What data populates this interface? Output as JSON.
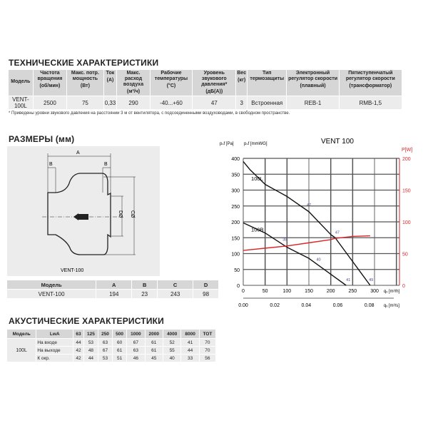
{
  "tech": {
    "title": "ТЕХНИЧЕСКИЕ ХАРАКТЕРИСТИКИ",
    "headers": [
      [
        "Модель",
        ""
      ],
      [
        "Частота вращения",
        "(об/мин)"
      ],
      [
        "Макс. потр. мощность",
        "(Вт)"
      ],
      [
        "Ток",
        "(А)"
      ],
      [
        "Макс. расход воздуха",
        "(м³/ч)"
      ],
      [
        "Рабочие температуры",
        "(°C)"
      ],
      [
        "Уровень звукового давления*",
        "(дБ(А))"
      ],
      [
        "Вес",
        "(кг)"
      ],
      [
        "Тип термозащиты",
        ""
      ],
      [
        "Электронный регулятор скорости",
        "(плавный)"
      ],
      [
        "Пятиступенчатый регулятор скорости",
        "(трансформатор)"
      ]
    ],
    "row": [
      "VENT-100L",
      "2500",
      "75",
      "0,33",
      "290",
      "-40...+60",
      "47",
      "3",
      "Встроенная",
      "REB-1",
      "RMB-1,5"
    ],
    "footnote": "* Приведены уровни звукового давления на расстоянии 3 м от вентилятора, с подсоединенными воздуховодами, в свободном пространстве."
  },
  "dims": {
    "title": "РАЗМЕРЫ (мм)",
    "drawing_caption": "VENT-100",
    "labels": {
      "a": "A",
      "b": "B",
      "c": "CØ",
      "d": "DØ"
    },
    "headers": [
      "Модель",
      "A",
      "B",
      "C",
      "D"
    ],
    "row": [
      "VENT-100",
      "194",
      "23",
      "243",
      "98"
    ]
  },
  "acoustic": {
    "title": "АКУСТИЧЕСКИЕ ХАРАКТЕРИСТИКИ",
    "headers": [
      "Модель",
      "LwA",
      "63",
      "125",
      "250",
      "500",
      "1000",
      "2000",
      "4000",
      "8000",
      "TOT"
    ],
    "model": "100L",
    "rows": [
      [
        "На входе",
        "44",
        "53",
        "63",
        "60",
        "67",
        "61",
        "52",
        "41",
        "70"
      ],
      [
        "На выходе",
        "42",
        "48",
        "67",
        "61",
        "63",
        "61",
        "55",
        "44",
        "70"
      ],
      [
        "К окр.",
        "42",
        "44",
        "53",
        "51",
        "46",
        "45",
        "40",
        "33",
        "56"
      ]
    ]
  },
  "chart_data": {
    "type": "line",
    "title": "VENT 100",
    "ylabel_left": "pₛf [Pa]",
    "ylabel_left2": "pₛf [mmWG]",
    "ylabel_right": "P[W]",
    "xlabel": "qᵥ [m³/h]",
    "xlabel2": "qᵥ [m³/s]",
    "xlim": [
      0,
      357
    ],
    "ylim": [
      0,
      400
    ],
    "y2lim": [
      0,
      200
    ],
    "xticks": [
      "0",
      "50",
      "100",
      "150",
      "200",
      "250",
      "300"
    ],
    "x2ticks": [
      "0.00",
      "0.02",
      "0.04",
      "0.06",
      "0.08"
    ],
    "yticks": [
      "0",
      "50",
      "100",
      "150",
      "200",
      "250",
      "300",
      "350",
      "400"
    ],
    "y2ticks": [
      "0",
      "50",
      "100",
      "150",
      "200"
    ],
    "series": [
      {
        "name": "100L",
        "axis": "left",
        "color": "#111111",
        "x": [
          0,
          15,
          30,
          50,
          100,
          150,
          200,
          210,
          250,
          290
        ],
        "y": [
          390,
          365,
          345,
          318,
          280,
          232,
          160,
          150,
          75,
          0
        ]
      },
      {
        "name": "100B",
        "axis": "left",
        "color": "#111111",
        "x": [
          0,
          50,
          100,
          150,
          200,
          235
        ],
        "y": [
          197,
          165,
          120,
          85,
          35,
          0
        ]
      },
      {
        "name": "P",
        "axis": "right",
        "color": "#d9262b",
        "x": [
          0,
          100,
          150,
          200,
          210,
          250,
          290
        ],
        "y": [
          55,
          62,
          67,
          72,
          74,
          77,
          78
        ]
      }
    ],
    "annotations": [
      {
        "text": "47",
        "x": 150,
        "y": 250
      },
      {
        "text": "47",
        "x": 215,
        "y": 163
      },
      {
        "text": "38",
        "x": 95,
        "y": 140
      },
      {
        "text": "40",
        "x": 172,
        "y": 78
      },
      {
        "text": "41",
        "x": 240,
        "y": 13
      },
      {
        "text": "49",
        "x": 292,
        "y": 13
      }
    ],
    "accent_right": "#d9262b"
  }
}
